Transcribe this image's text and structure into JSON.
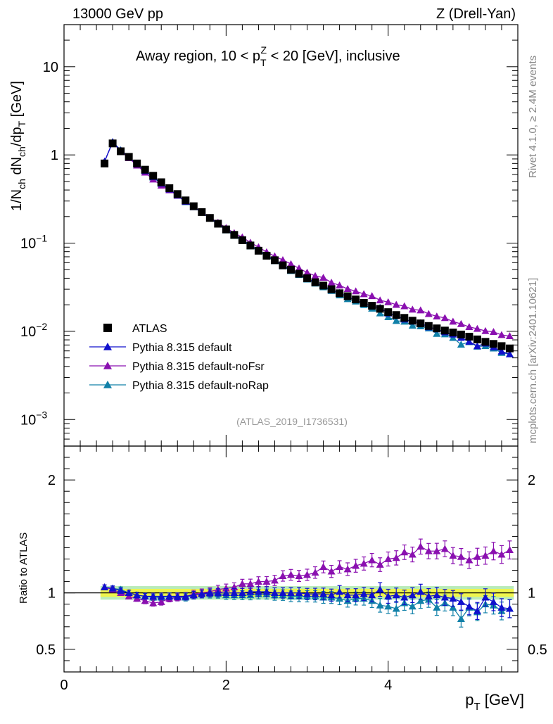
{
  "header": {
    "left_label": "13000 GeV pp",
    "right_label": "Z (Drell-Yan)",
    "side_label_top": "Rivet 4.1.0, ≥ 2.4M events",
    "side_label_bottom": "mcplots.cern.ch [arXiv:2401.10621]"
  },
  "chart_data": {
    "type": "scatter",
    "title_prefix": "Away region, 10 < p",
    "title_sup": "Z",
    "title_sub": "T",
    "title_suffix": " < 20 [GeV], inclusive",
    "analysis_id": "(ATLAS_2019_I1736531)",
    "xlabel_main": "p",
    "xlabel_sub": "T",
    "xlabel_unit": " [GeV]",
    "ylabel_top_a": "1/N",
    "ylabel_top_sub1": "ch",
    "ylabel_top_b": " dN",
    "ylabel_top_sub2": "ch",
    "ylabel_top_c": "/dp",
    "ylabel_top_sub3": "T",
    "ylabel_top_d": " [GeV]",
    "ylabel_ratio": "Ratio to ATLAS",
    "xlim": [
      0,
      5.6
    ],
    "ylim_top": [
      0.0005,
      30
    ],
    "ylim_ratio": [
      0.3,
      2.3
    ],
    "x_ticks": [
      "0",
      "2",
      "4"
    ],
    "x_tick_values": [
      0,
      2,
      4
    ],
    "y_ticks_top": [
      {
        "value": 10,
        "label": "10",
        "exp": ""
      },
      {
        "value": 1,
        "label": "1",
        "exp": ""
      },
      {
        "value": 0.1,
        "label": "10",
        "exp": "−1"
      },
      {
        "value": 0.01,
        "label": "10",
        "exp": "−2"
      },
      {
        "value": 0.001,
        "label": "10",
        "exp": "−3"
      }
    ],
    "y_ticks_ratio": [
      {
        "value": 2,
        "label": "2"
      },
      {
        "value": 1,
        "label": "1"
      },
      {
        "value": 0.5,
        "label": "0.5"
      }
    ],
    "legend": {
      "position": "lower-left",
      "entries": [
        {
          "name": "ATLAS",
          "color": "#000000",
          "marker": "square"
        },
        {
          "name": "Pythia 8.315 default",
          "color": "#1010cc",
          "marker": "triangle"
        },
        {
          "name": "Pythia 8.315 default-noFsr",
          "color": "#8a10b0",
          "marker": "triangle"
        },
        {
          "name": "Pythia 8.315 default-noRap",
          "color": "#1080a8",
          "marker": "triangle"
        }
      ]
    },
    "x": [
      0.5,
      0.6,
      0.7,
      0.8,
      0.9,
      1.0,
      1.1,
      1.2,
      1.3,
      1.4,
      1.5,
      1.6,
      1.7,
      1.8,
      1.9,
      2.0,
      2.1,
      2.2,
      2.3,
      2.4,
      2.5,
      2.6,
      2.7,
      2.8,
      2.9,
      3.0,
      3.1,
      3.2,
      3.3,
      3.4,
      3.5,
      3.6,
      3.7,
      3.8,
      3.9,
      4.0,
      4.1,
      4.2,
      4.3,
      4.4,
      4.5,
      4.6,
      4.7,
      4.8,
      4.9,
      5.0,
      5.1,
      5.2,
      5.3,
      5.4,
      5.5
    ],
    "series": [
      {
        "name": "ATLAS",
        "color": "#000000",
        "values": [
          0.8,
          1.35,
          1.1,
          0.95,
          0.8,
          0.68,
          0.58,
          0.49,
          0.42,
          0.36,
          0.305,
          0.262,
          0.225,
          0.193,
          0.166,
          0.143,
          0.124,
          0.108,
          0.094,
          0.082,
          0.072,
          0.064,
          0.056,
          0.05,
          0.045,
          0.04,
          0.036,
          0.033,
          0.03,
          0.027,
          0.025,
          0.023,
          0.021,
          0.0195,
          0.018,
          0.0165,
          0.0153,
          0.0142,
          0.0132,
          0.0123,
          0.0115,
          0.0108,
          0.0102,
          0.0097,
          0.0092,
          0.0087,
          0.0081,
          0.0076,
          0.0072,
          0.0068,
          0.0064
        ]
      },
      {
        "name": "Pythia 8.315 default",
        "color": "#1010cc",
        "ratio": [
          1.05,
          1.04,
          1.02,
          1.0,
          0.98,
          0.97,
          0.97,
          0.97,
          0.97,
          0.97,
          0.97,
          0.98,
          0.99,
          1.0,
          1.0,
          1.0,
          1.0,
          1.0,
          1.01,
          1.01,
          1.01,
          1.0,
          1.0,
          1.0,
          1.0,
          0.99,
          0.99,
          0.99,
          0.98,
          1.01,
          0.98,
          0.98,
          0.99,
          0.98,
          1.03,
          0.97,
          0.98,
          0.96,
          0.98,
          1.01,
          0.97,
          0.98,
          0.96,
          0.95,
          0.92,
          0.88,
          0.84,
          0.96,
          0.92,
          0.87,
          0.86
        ]
      },
      {
        "name": "Pythia 8.315 default-noFsr",
        "color": "#8a10b0",
        "ratio": [
          1.05,
          1.03,
          1.0,
          0.97,
          0.95,
          0.93,
          0.91,
          0.92,
          0.95,
          0.96,
          0.97,
          0.99,
          1.0,
          1.01,
          1.03,
          1.04,
          1.05,
          1.08,
          1.08,
          1.1,
          1.1,
          1.11,
          1.15,
          1.16,
          1.15,
          1.16,
          1.18,
          1.23,
          1.19,
          1.23,
          1.21,
          1.24,
          1.26,
          1.29,
          1.25,
          1.3,
          1.31,
          1.36,
          1.34,
          1.41,
          1.37,
          1.37,
          1.39,
          1.33,
          1.32,
          1.29,
          1.32,
          1.33,
          1.37,
          1.34,
          1.38
        ]
      },
      {
        "name": "Pythia 8.315 default-noRap",
        "color": "#1080a8",
        "ratio": [
          1.05,
          1.04,
          1.03,
          1.0,
          0.98,
          0.97,
          0.96,
          0.96,
          0.97,
          0.96,
          0.96,
          0.98,
          0.99,
          0.99,
          0.99,
          0.98,
          0.98,
          0.98,
          0.98,
          0.99,
          0.99,
          0.98,
          0.98,
          0.97,
          0.97,
          0.97,
          0.97,
          0.96,
          0.96,
          0.95,
          0.93,
          0.95,
          0.95,
          0.93,
          0.89,
          0.88,
          0.86,
          0.91,
          0.88,
          0.93,
          0.94,
          0.87,
          0.91,
          0.87,
          0.77,
          0.87,
          0.83,
          0.9,
          0.89,
          0.84,
          0.86
        ]
      }
    ],
    "uncertainty_band_colors": {
      "inner": "#f5f540",
      "outer": "#9be29b"
    }
  }
}
